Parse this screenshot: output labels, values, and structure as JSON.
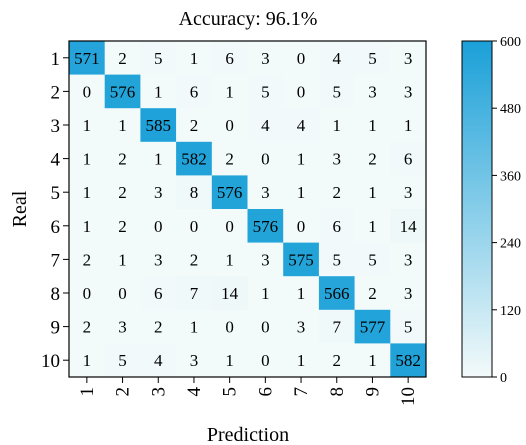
{
  "chart_data": {
    "type": "heatmap",
    "title": "Accuracy: 96.1%",
    "xlabel": "Prediction",
    "ylabel": "Real",
    "x_categories": [
      "1",
      "2",
      "3",
      "4",
      "5",
      "6",
      "7",
      "8",
      "9",
      "10"
    ],
    "y_categories": [
      "1",
      "2",
      "3",
      "4",
      "5",
      "6",
      "7",
      "8",
      "9",
      "10"
    ],
    "matrix": [
      [
        571,
        2,
        5,
        1,
        6,
        3,
        0,
        4,
        5,
        3
      ],
      [
        0,
        576,
        1,
        6,
        1,
        5,
        0,
        5,
        3,
        3
      ],
      [
        1,
        1,
        585,
        2,
        0,
        4,
        4,
        1,
        1,
        1
      ],
      [
        1,
        2,
        1,
        582,
        2,
        0,
        1,
        3,
        2,
        6
      ],
      [
        1,
        2,
        3,
        8,
        576,
        3,
        1,
        2,
        1,
        3
      ],
      [
        1,
        2,
        0,
        0,
        0,
        576,
        0,
        6,
        1,
        14
      ],
      [
        2,
        1,
        3,
        2,
        1,
        3,
        575,
        5,
        5,
        3
      ],
      [
        0,
        0,
        6,
        7,
        14,
        1,
        1,
        566,
        2,
        3
      ],
      [
        2,
        3,
        2,
        1,
        0,
        0,
        3,
        7,
        577,
        5
      ],
      [
        1,
        5,
        4,
        3,
        1,
        0,
        1,
        2,
        1,
        582
      ]
    ],
    "colorbar": {
      "range": [
        0,
        600
      ],
      "ticks": [
        "0",
        "120",
        "240",
        "360",
        "480",
        "600"
      ]
    },
    "colors": {
      "low": "#f3fafa",
      "high": "#1aa0d8"
    }
  }
}
